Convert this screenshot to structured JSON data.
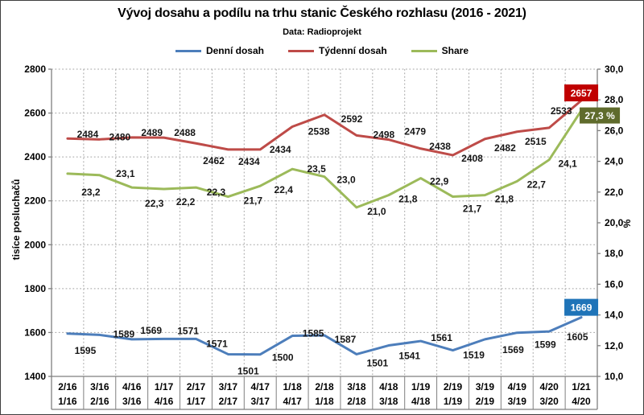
{
  "legend": {
    "items": [
      {
        "label": "Denní dosah",
        "color": "#4D7EBB"
      },
      {
        "label": "Týdenní dosah",
        "color": "#BE4B48"
      },
      {
        "label": "Share",
        "color": "#9CBA5A"
      }
    ]
  },
  "chart_data": {
    "type": "line",
    "title": "Vývoj dosahu a podílu na trhu stanic Českého rozhlasu (2016 - 2021)",
    "subtitle": "Data: Radioprojekt",
    "x_axis": {
      "row1": [
        "2/16",
        "3/16",
        "4/16",
        "1/17",
        "2/17",
        "3/17",
        "4/17",
        "1/18",
        "2/18",
        "3/18",
        "4/18",
        "1/19",
        "2/19",
        "3/19",
        "4/19",
        "4/20",
        "1/21"
      ],
      "row2": [
        "1/16",
        "2/16",
        "3/16",
        "4/16",
        "1/17",
        "2/17",
        "3/17",
        "4/17",
        "1/18",
        "2/18",
        "3/18",
        "4/18",
        "1/19",
        "2/19",
        "3/19",
        "3/20",
        "4/20"
      ]
    },
    "y_left": {
      "title": "tisíce posluchačů",
      "min": 1400,
      "max": 2800,
      "step": 200,
      "tick_labels": [
        "1400",
        "1600",
        "1800",
        "2000",
        "2200",
        "2400",
        "2600",
        "2800"
      ]
    },
    "y_right": {
      "title": "%",
      "min": 10,
      "max": 30,
      "step": 2,
      "tick_labels": [
        "10,0",
        "12,0",
        "14,0",
        "16,0",
        "18,0",
        "20,0",
        "22,0",
        "24,0",
        "26,0",
        "28,0",
        "30,0"
      ]
    },
    "grid": {
      "horizontal": true,
      "vertical": true,
      "style": "dotted"
    },
    "legend_position": "top",
    "series": [
      {
        "name": "Denní dosah",
        "axis": "left",
        "color": "#4D7EBB",
        "values": [
          1595,
          1589,
          1569,
          1571,
          1571,
          1501,
          1500,
          1585,
          1587,
          1501,
          1541,
          1561,
          1519,
          1569,
          1599,
          1605,
          1669
        ],
        "labels": [
          "1595",
          "1589",
          "1569",
          "1571",
          "1571",
          "1501",
          "1500",
          "1585",
          "1587",
          "1501",
          "1541",
          "1561",
          "1519",
          "1569",
          "1599",
          "1605"
        ],
        "end_box": {
          "text": "1669",
          "bg": "#1F74B8",
          "fg": "#FFFFFF"
        }
      },
      {
        "name": "Týdenní dosah",
        "axis": "left",
        "color": "#BE4B48",
        "values": [
          2484,
          2480,
          2489,
          2488,
          2462,
          2434,
          2434,
          2538,
          2592,
          2498,
          2479,
          2438,
          2408,
          2482,
          2515,
          2533,
          2657
        ],
        "labels": [
          "2484",
          "2480",
          "2489",
          "2488",
          "2462",
          "2434",
          "2434",
          "2538",
          "2592",
          "2498",
          "2479",
          "2438",
          "2408",
          "2482",
          "2515",
          "2533"
        ],
        "end_box": {
          "text": "2657",
          "bg": "#C00000",
          "fg": "#FFFFFF"
        }
      },
      {
        "name": "Share",
        "axis": "right",
        "color": "#9CBA5A",
        "values": [
          23.2,
          23.1,
          22.3,
          22.2,
          22.3,
          21.7,
          22.4,
          23.5,
          23.0,
          21.0,
          21.8,
          22.9,
          21.7,
          21.8,
          22.7,
          24.1,
          27.3
        ],
        "labels": [
          "23,2",
          "23,1",
          "22,3",
          "22,2",
          "22,3",
          "21,7",
          "22,4",
          "23,5",
          "23,0",
          "21,0",
          "21,8",
          "22,9",
          "21,7",
          "21,8",
          "22,7",
          "24,1"
        ],
        "end_box": {
          "text": "27,3 %",
          "bg": "#5F6B2C",
          "fg": "#FFFFFF"
        }
      }
    ]
  }
}
